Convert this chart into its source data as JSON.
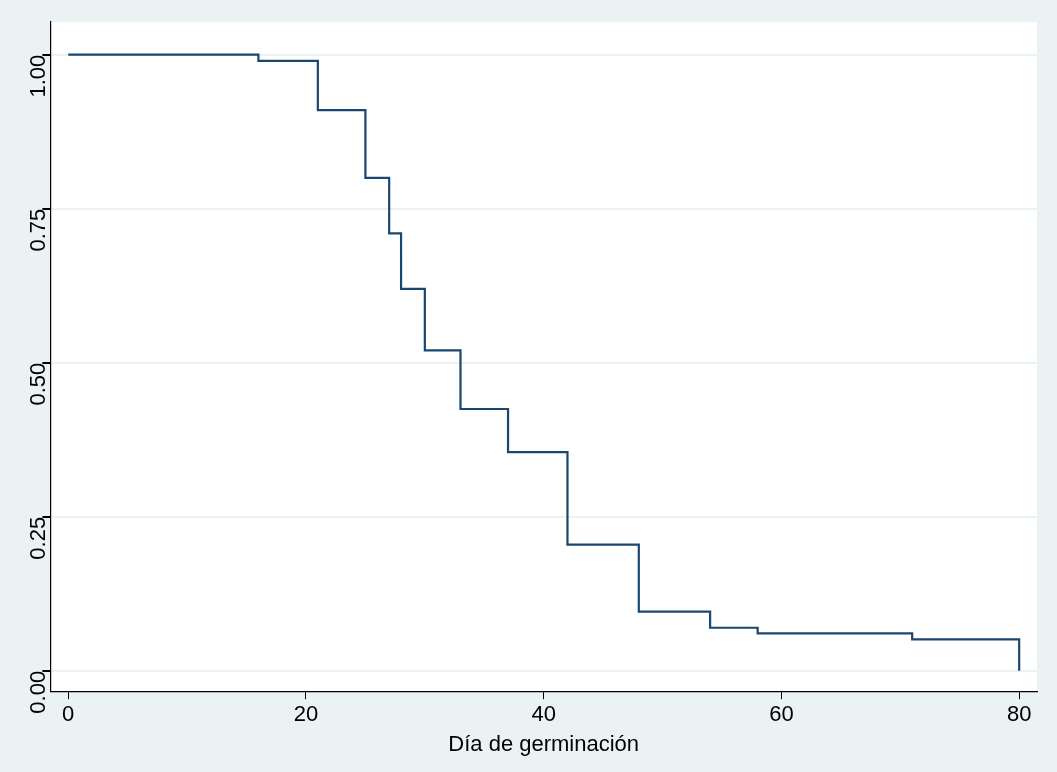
{
  "chart_data": {
    "type": "step",
    "xlabel": "Día de germinación",
    "x": [
      0,
      16,
      21,
      25,
      27,
      28,
      30,
      33,
      37,
      42,
      48,
      54,
      58,
      71,
      80
    ],
    "series": [
      {
        "color": "#1a476f",
        "values": [
          1,
          0.99,
          0.91,
          0.8,
          0.71,
          0.62,
          0.52,
          0.425,
          0.355,
          0.205,
          0.096,
          0.07,
          0.061,
          0.051,
          0
        ]
      }
    ],
    "xlim": [
      -1.5,
      81.5
    ],
    "xticks": [
      0,
      20,
      40,
      60,
      80
    ],
    "ylim": [
      -0.033,
      1.053
    ],
    "yticks": [
      {
        "value": 0,
        "label": "0.00"
      },
      {
        "value": 0.25,
        "label": "0.25"
      },
      {
        "value": 0.5,
        "label": "0.50"
      },
      {
        "value": 0.75,
        "label": "0.75"
      },
      {
        "value": 1,
        "label": "1.00"
      }
    ],
    "grid": "y",
    "legend": false,
    "marker": "none"
  }
}
